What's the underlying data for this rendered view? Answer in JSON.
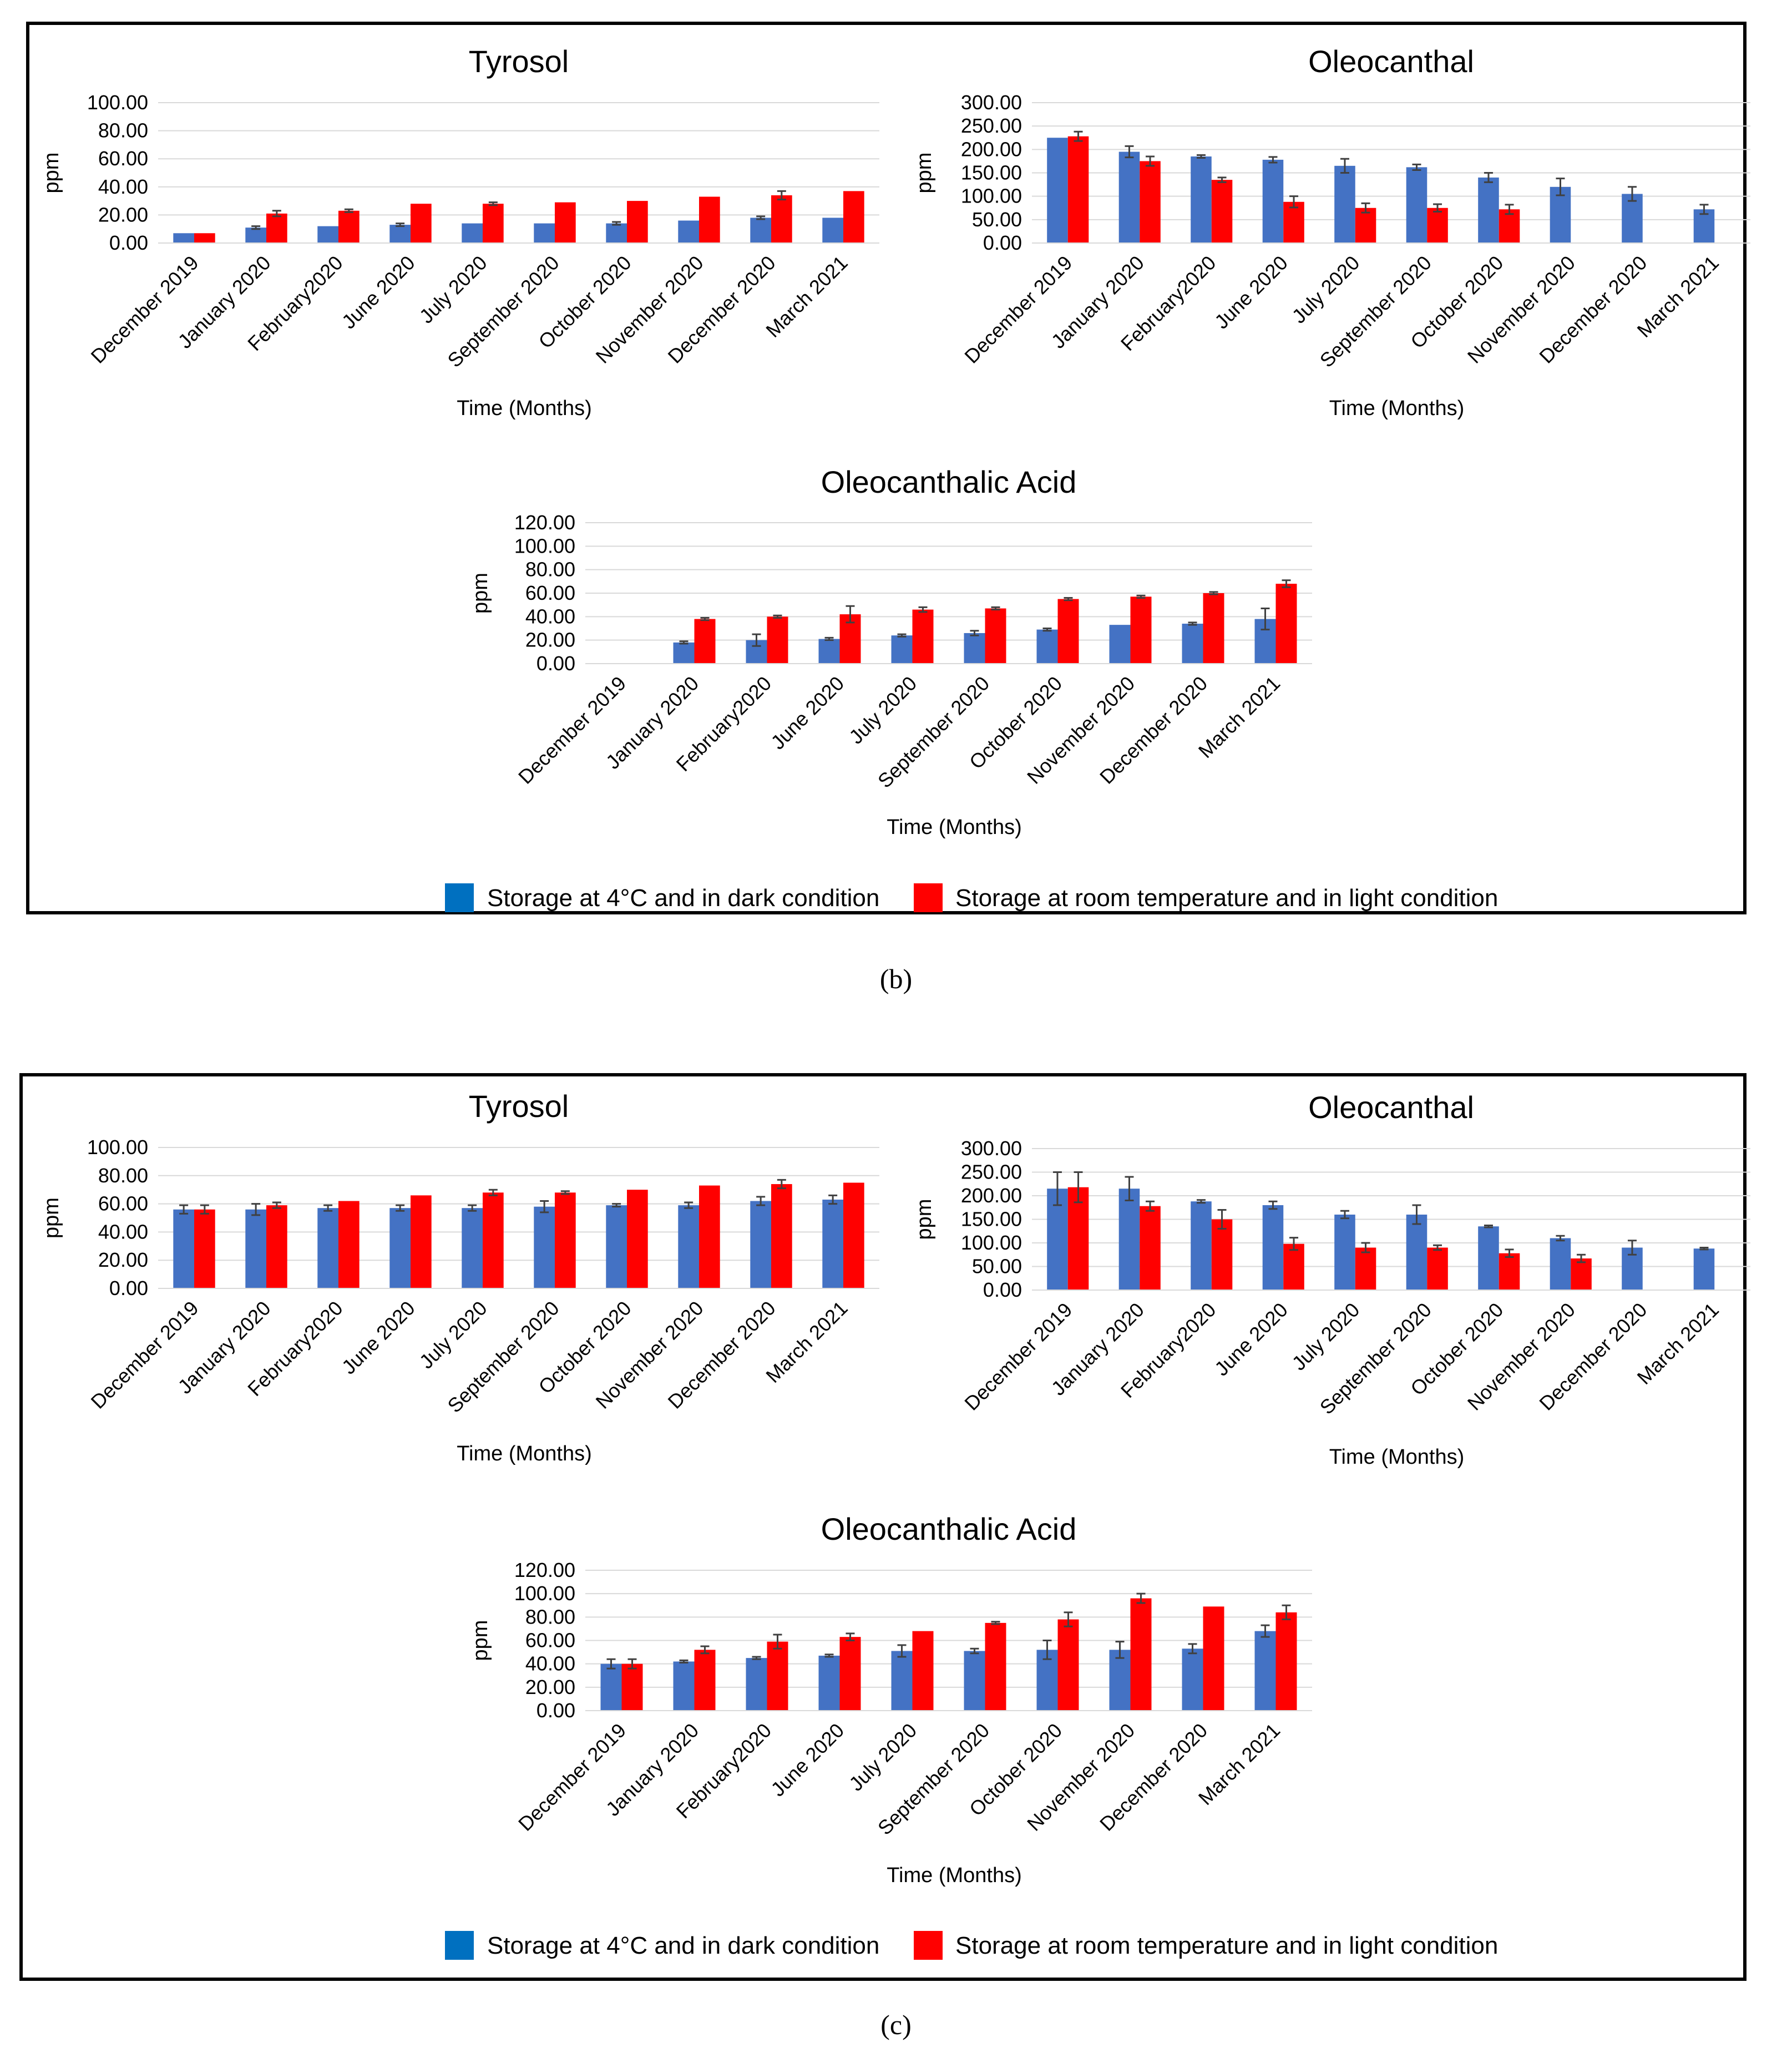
{
  "colors": {
    "dark": "#4472C4",
    "light": "#FF0000",
    "frame": "#000000",
    "grid": "#D9D9D9",
    "text": "#000000"
  },
  "panels": [
    {
      "label": "(b)",
      "legend": [
        "Storage at 4°C and in dark condition",
        "Storage at room temperature and in light condition"
      ],
      "chart_data": [
        {
          "type": "bar",
          "title": "Tyrosol",
          "xlabel": "Time (Months)",
          "ylabel": "ppm",
          "ylim": [
            0,
            100
          ],
          "ytick_step": 20,
          "categories": [
            "December 2019",
            "January 2020",
            "February2020",
            "June 2020",
            "July 2020",
            "September 2020",
            "October 2020",
            "November 2020",
            "December 2020",
            "March 2021"
          ],
          "series": [
            {
              "name": "Storage at 4°C and in dark condition",
              "values": [
                7,
                11,
                12,
                13,
                14,
                14,
                14,
                16,
                18,
                18
              ],
              "errors": [
                0,
                1,
                0,
                1,
                0,
                0,
                1,
                0,
                1,
                0
              ]
            },
            {
              "name": "Storage at room temperature and in light condition",
              "values": [
                7,
                21,
                23,
                28,
                28,
                29,
                30,
                33,
                34,
                37
              ],
              "errors": [
                0,
                2,
                1,
                0,
                1,
                0,
                0,
                0,
                3,
                0
              ]
            }
          ]
        },
        {
          "type": "bar",
          "title": "Oleocanthal",
          "xlabel": "Time (Months)",
          "ylabel": "ppm",
          "ylim": [
            0,
            300
          ],
          "ytick_step": 50,
          "categories": [
            "December 2019",
            "January 2020",
            "February2020",
            "June 2020",
            "July 2020",
            "September 2020",
            "October 2020",
            "November 2020",
            "December 2020",
            "March 2021"
          ],
          "series": [
            {
              "name": "Storage at 4°C and in dark condition",
              "values": [
                225,
                195,
                185,
                178,
                165,
                162,
                140,
                120,
                105,
                72
              ],
              "errors": [
                0,
                12,
                3,
                6,
                15,
                6,
                10,
                18,
                15,
                10
              ]
            },
            {
              "name": "Storage at room temperature and in light condition",
              "values": [
                228,
                175,
                135,
                88,
                75,
                75,
                72,
                null,
                null,
                null
              ],
              "errors": [
                10,
                10,
                5,
                12,
                10,
                8,
                10,
                0,
                0,
                0
              ]
            }
          ]
        },
        {
          "type": "bar",
          "title": "Oleocanthalic Acid",
          "xlabel": "Time (Months)",
          "ylabel": "ppm",
          "ylim": [
            0,
            120
          ],
          "ytick_step": 20,
          "categories": [
            "December 2019",
            "January 2020",
            "February2020",
            "June 2020",
            "July 2020",
            "September 2020",
            "October 2020",
            "November 2020",
            "December 2020",
            "March 2021"
          ],
          "series": [
            {
              "name": "Storage at 4°C and in dark condition",
              "values": [
                null,
                18,
                20,
                21,
                24,
                26,
                29,
                33,
                34,
                38
              ],
              "errors": [
                0,
                1,
                5,
                1,
                1,
                2,
                1,
                0,
                1,
                9
              ]
            },
            {
              "name": "Storage at room temperature and in light condition",
              "values": [
                null,
                38,
                40,
                42,
                46,
                47,
                55,
                57,
                60,
                68
              ],
              "errors": [
                0,
                1,
                1,
                7,
                2,
                1,
                1,
                1,
                1,
                3
              ]
            }
          ]
        }
      ]
    },
    {
      "label": "(c)",
      "legend": [
        "Storage at 4°C and in dark condition",
        "Storage at room temperature and in light condition"
      ],
      "chart_data": [
        {
          "type": "bar",
          "title": "Tyrosol",
          "xlabel": "Time (Months)",
          "ylabel": "ppm",
          "ylim": [
            0,
            100
          ],
          "ytick_step": 20,
          "categories": [
            "December 2019",
            "January 2020",
            "February2020",
            "June 2020",
            "July 2020",
            "September 2020",
            "October 2020",
            "November 2020",
            "December 2020",
            "March 2021"
          ],
          "series": [
            {
              "name": "Storage at 4°C and in dark condition",
              "values": [
                56,
                56,
                57,
                57,
                57,
                58,
                59,
                59,
                62,
                63
              ],
              "errors": [
                3,
                4,
                2,
                2,
                2,
                4,
                1,
                2,
                3,
                3
              ]
            },
            {
              "name": "Storage at room temperature and in light condition",
              "values": [
                56,
                59,
                62,
                66,
                68,
                68,
                70,
                73,
                74,
                75
              ],
              "errors": [
                3,
                2,
                0,
                0,
                2,
                1,
                0,
                0,
                3,
                0
              ]
            }
          ]
        },
        {
          "type": "bar",
          "title": "Oleocanthal",
          "xlabel": "Time (Months)",
          "ylabel": "ppm",
          "ylim": [
            0,
            300
          ],
          "ytick_step": 50,
          "categories": [
            "December 2019",
            "January 2020",
            "February2020",
            "June 2020",
            "July 2020",
            "September 2020",
            "October 2020",
            "November 2020",
            "December 2020",
            "March 2021"
          ],
          "series": [
            {
              "name": "Storage at 4°C and in dark condition",
              "values": [
                215,
                215,
                188,
                180,
                160,
                160,
                135,
                110,
                90,
                88
              ],
              "errors": [
                35,
                25,
                3,
                8,
                8,
                20,
                2,
                5,
                15,
                2
              ]
            },
            {
              "name": "Storage at room temperature and in light condition",
              "values": [
                218,
                178,
                150,
                98,
                90,
                90,
                78,
                67,
                null,
                null
              ],
              "errors": [
                32,
                10,
                20,
                13,
                10,
                5,
                8,
                8,
                0,
                0
              ]
            }
          ]
        },
        {
          "type": "bar",
          "title": "Oleocanthalic Acid",
          "xlabel": "Time (Months)",
          "ylabel": "ppm",
          "ylim": [
            0,
            120
          ],
          "ytick_step": 20,
          "categories": [
            "December 2019",
            "January 2020",
            "February2020",
            "June 2020",
            "July 2020",
            "September 2020",
            "October 2020",
            "November 2020",
            "December 2020",
            "March 2021"
          ],
          "series": [
            {
              "name": "Storage at 4°C and in dark condition",
              "values": [
                40,
                42,
                45,
                47,
                51,
                51,
                52,
                52,
                53,
                68
              ],
              "errors": [
                4,
                1,
                1,
                1,
                5,
                2,
                8,
                7,
                4,
                5
              ]
            },
            {
              "name": "Storage at room temperature and in light condition",
              "values": [
                40,
                52,
                59,
                63,
                68,
                75,
                78,
                96,
                89,
                84
              ],
              "errors": [
                4,
                3,
                6,
                3,
                0,
                1,
                6,
                4,
                0,
                6
              ]
            }
          ]
        }
      ]
    }
  ]
}
